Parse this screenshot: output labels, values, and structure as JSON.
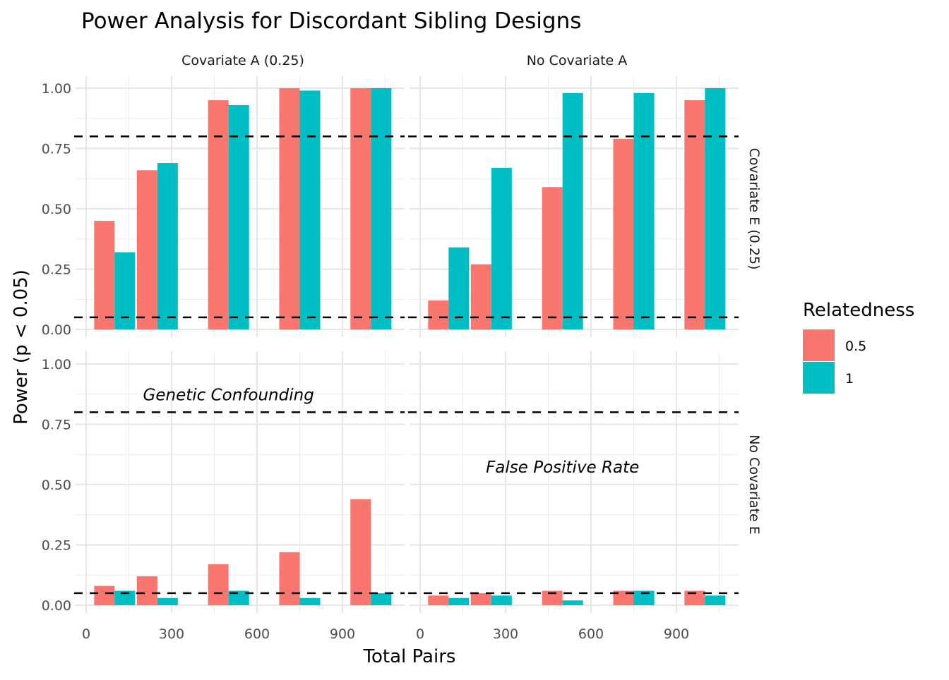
{
  "chart_data": {
    "type": "bar",
    "title": "Power Analysis for Discordant Sibling Designs",
    "xlabel": "Total Pairs",
    "ylabel": "Power (p < 0.05)",
    "x_ticks": [
      0,
      300,
      600,
      900
    ],
    "x_tick_labels": [
      "0",
      "300",
      "600",
      "900"
    ],
    "y_ticks": [
      0,
      0.25,
      0.5,
      0.75,
      1.0
    ],
    "y_tick_labels": [
      "0.00",
      "0.25",
      "0.50",
      "0.75",
      "1.00"
    ],
    "ylim": [
      0,
      1
    ],
    "xlim": [
      -40,
      1110
    ],
    "grid": true,
    "reference_lines": [
      0.05,
      0.8
    ],
    "legend": {
      "title": "Relatedness",
      "position": "right",
      "entries": [
        {
          "label": "0.5",
          "color": "#F8766D"
        },
        {
          "label": "1",
          "color": "#00BFC4"
        }
      ]
    },
    "col_strips": [
      "Covariate A (0.25)",
      "No Covariate A"
    ],
    "row_strips": [
      "Covariate E (0.25)",
      "No Covariate E"
    ],
    "categories": [
      100,
      250,
      500,
      750,
      1000
    ],
    "panels": [
      {
        "col": "Covariate A (0.25)",
        "row": "Covariate E (0.25)",
        "annotation": "",
        "series": [
          {
            "name": "0.5",
            "values": [
              0.45,
              0.66,
              0.95,
              1.0,
              1.0
            ]
          },
          {
            "name": "1",
            "values": [
              0.32,
              0.69,
              0.93,
              0.99,
              1.0
            ]
          }
        ]
      },
      {
        "col": "No Covariate A",
        "row": "Covariate E (0.25)",
        "annotation": "",
        "series": [
          {
            "name": "0.5",
            "values": [
              0.12,
              0.27,
              0.59,
              0.79,
              0.95
            ]
          },
          {
            "name": "1",
            "values": [
              0.34,
              0.67,
              0.98,
              0.98,
              1.0
            ]
          }
        ]
      },
      {
        "col": "Covariate A (0.25)",
        "row": "No Covariate E",
        "annotation": "Genetic Confounding",
        "annotation_pos": {
          "x": 500,
          "y": 0.85
        },
        "series": [
          {
            "name": "0.5",
            "values": [
              0.08,
              0.12,
              0.17,
              0.22,
              0.44
            ]
          },
          {
            "name": "1",
            "values": [
              0.06,
              0.03,
              0.06,
              0.03,
              0.05
            ]
          }
        ]
      },
      {
        "col": "No Covariate A",
        "row": "No Covariate E",
        "annotation": "False Positive Rate",
        "annotation_pos": {
          "x": 500,
          "y": 0.55
        },
        "series": [
          {
            "name": "0.5",
            "values": [
              0.04,
              0.05,
              0.06,
              0.06,
              0.06
            ]
          },
          {
            "name": "1",
            "values": [
              0.03,
              0.04,
              0.02,
              0.06,
              0.04
            ]
          }
        ]
      }
    ]
  }
}
